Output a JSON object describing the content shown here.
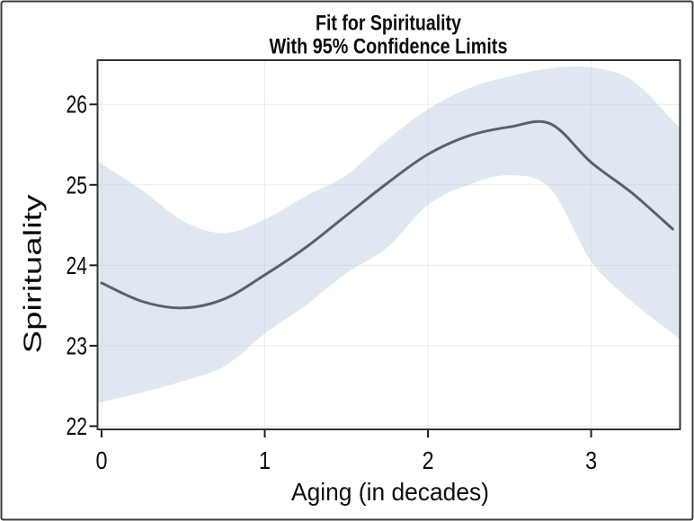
{
  "figure": {
    "title_line1": "Fit for Spirituality",
    "title_line2": "With 95% Confidence Limits",
    "x_axis_label": "Aging (in decades)",
    "y_axis_label": "Spirituality"
  },
  "colors": {
    "background": "#ffffff",
    "outer_border": "#3d3d3d",
    "plot_frame": "#333333",
    "gridline": "#eaeaea",
    "tick_mark": "#1c1c1c",
    "band_fill": "#b9cbe1",
    "band_opacity": 0.45,
    "fit_line": "#596169",
    "text": "#0d0d0d"
  },
  "chart_data": {
    "type": "line",
    "title": "Fit for Spirituality",
    "subtitle": "With 95% Confidence Limits",
    "xlabel": "Aging (in decades)",
    "ylabel": "Spirituality",
    "xlim": [
      -0.025,
      3.545
    ],
    "ylim": [
      21.96,
      26.55
    ],
    "x_ticks": [
      0,
      1,
      2,
      3
    ],
    "y_ticks": [
      22,
      23,
      24,
      25,
      26
    ],
    "grid": true,
    "legend": "none",
    "band_label": "95% Confidence Limits",
    "x": [
      0,
      0.25,
      0.5,
      0.75,
      1,
      1.25,
      1.5,
      1.75,
      2,
      2.25,
      2.5,
      2.75,
      3,
      3.25,
      3.5
    ],
    "series": [
      {
        "name": "Fit",
        "values": [
          23.78,
          23.55,
          23.47,
          23.58,
          23.88,
          24.22,
          24.62,
          25.02,
          25.38,
          25.61,
          25.72,
          25.76,
          25.28,
          24.9,
          24.45
        ]
      },
      {
        "name": "Upper 95% CL",
        "values": [
          25.26,
          24.93,
          24.55,
          24.4,
          24.57,
          24.86,
          25.12,
          25.56,
          25.94,
          26.2,
          26.35,
          26.45,
          26.46,
          26.3,
          25.8
        ]
      },
      {
        "name": "Lower 95% CL",
        "values": [
          22.3,
          22.42,
          22.56,
          22.74,
          23.15,
          23.5,
          23.9,
          24.22,
          24.75,
          25.0,
          25.12,
          24.95,
          24.05,
          23.55,
          23.15
        ]
      }
    ]
  }
}
